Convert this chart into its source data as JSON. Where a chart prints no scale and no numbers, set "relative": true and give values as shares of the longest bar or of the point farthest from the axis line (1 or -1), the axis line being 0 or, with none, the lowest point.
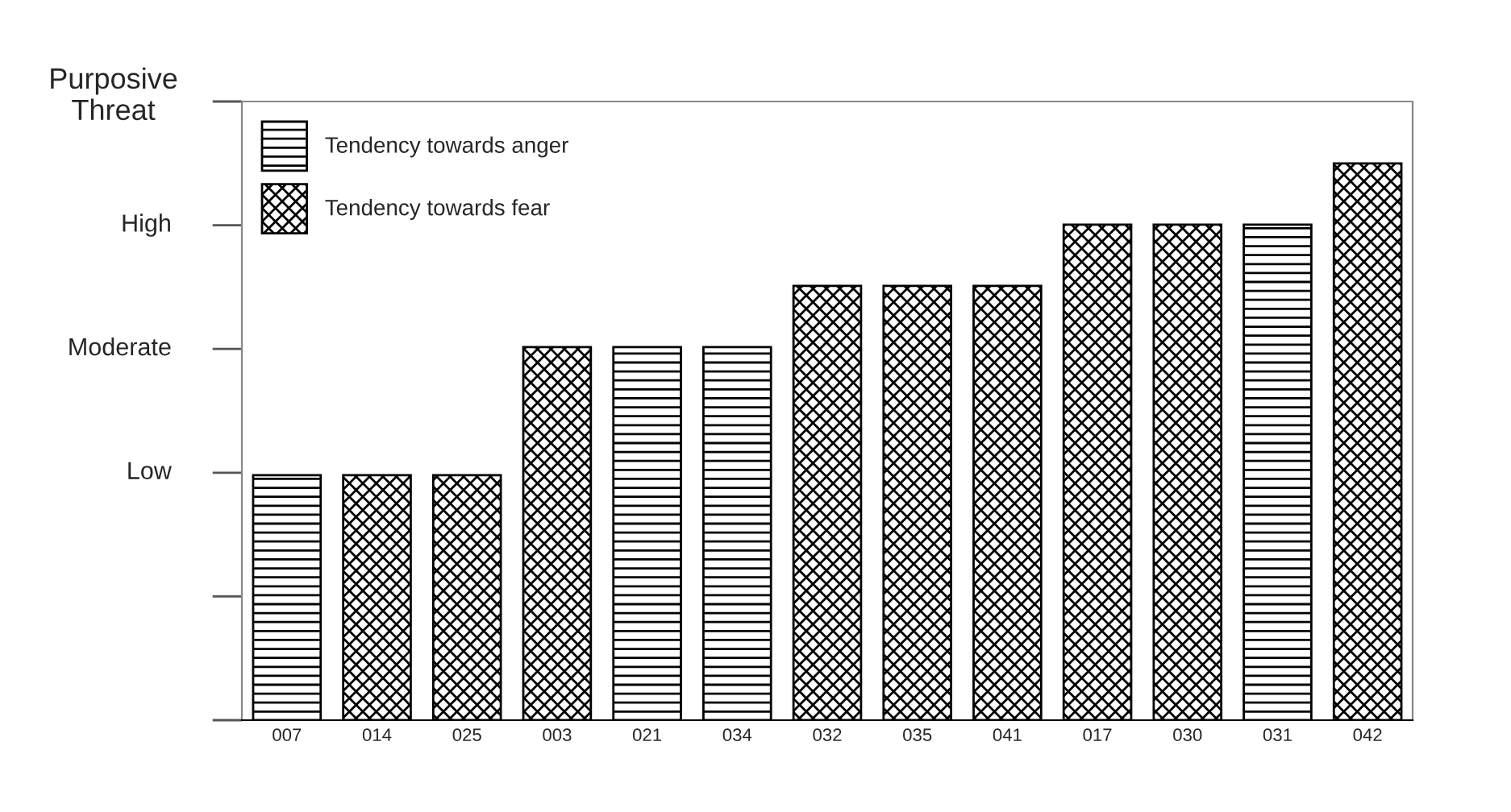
{
  "chart_data": {
    "type": "bar",
    "ylabel": "Purposive Threat",
    "relative": true,
    "categories": [
      "007",
      "014",
      "025",
      "003",
      "021",
      "034",
      "032",
      "035",
      "041",
      "017",
      "030",
      "031",
      "042"
    ],
    "series": [
      {
        "name": "Tendency towards anger",
        "color": "#000000",
        "values": [
          0.44,
          null,
          null,
          null,
          0.67,
          0.67,
          null,
          null,
          null,
          null,
          null,
          0.89,
          null
        ]
      },
      {
        "name": "Tendency towards fear",
        "color": "#000000",
        "values": [
          null,
          0.44,
          0.44,
          0.67,
          null,
          null,
          0.78,
          0.78,
          0.78,
          0.89,
          0.89,
          null,
          1
        ]
      }
    ],
    "annotations": [
      "Low",
      "Moderate",
      "High"
    ],
    "legend": "top left",
    "grid": false
  }
}
